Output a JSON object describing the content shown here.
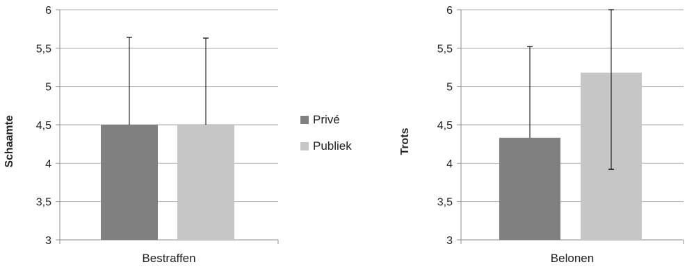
{
  "chart_data": [
    {
      "type": "bar",
      "categories": [
        "Bestraffen"
      ],
      "series": [
        {
          "name": "Privé",
          "values": [
            4.5
          ],
          "error_upper": [
            5.64
          ],
          "error_lower": [
            4.5
          ]
        },
        {
          "name": "Publiek",
          "values": [
            4.5
          ],
          "error_upper": [
            5.63
          ],
          "error_lower": [
            4.5
          ]
        }
      ],
      "xlabel": "",
      "ylabel": "Schaamte",
      "ylim": [
        3,
        6
      ],
      "yticks": [
        "3",
        "3,5",
        "4",
        "4,5",
        "5",
        "5,5",
        "6"
      ],
      "grid": true,
      "legend": "right"
    },
    {
      "type": "bar",
      "categories": [
        "Belonen"
      ],
      "series": [
        {
          "name": "Privé",
          "values": [
            4.33
          ],
          "error_upper": [
            5.52
          ],
          "error_lower": [
            4.33
          ]
        },
        {
          "name": "Publiek",
          "values": [
            5.18
          ],
          "error_upper": [
            6.0
          ],
          "error_lower": [
            3.92
          ]
        }
      ],
      "xlabel": "",
      "ylabel": "Trots",
      "ylim": [
        3,
        6
      ],
      "yticks": [
        "3",
        "3,5",
        "4",
        "4,5",
        "5",
        "5,5",
        "6"
      ],
      "grid": true
    }
  ],
  "legend": {
    "items": [
      {
        "label": "Privé",
        "color": "#808080"
      },
      {
        "label": "Publiek",
        "color": "#c6c6c6"
      }
    ]
  },
  "colors": {
    "grid": "#a6a6a6",
    "axis": "#8c8c8c",
    "error_bar": "#000000",
    "text": "#222222"
  }
}
